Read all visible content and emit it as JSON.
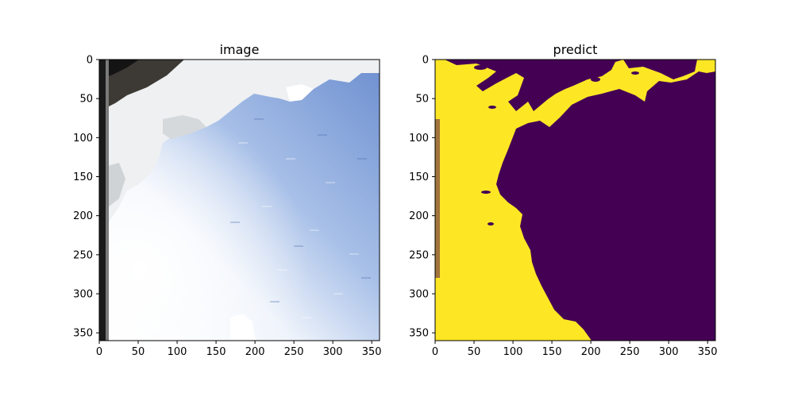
{
  "chart_data": [
    {
      "type": "image",
      "title": "image",
      "xlim": [
        0,
        360
      ],
      "ylim": [
        360,
        0
      ],
      "xticks": [
        0,
        50,
        100,
        150,
        200,
        250,
        300,
        350
      ],
      "yticks": [
        0,
        50,
        100,
        150,
        200,
        250,
        300,
        350
      ],
      "xtick_labels": [
        "0",
        "50",
        "100",
        "150",
        "200",
        "250",
        "300",
        "350"
      ],
      "ytick_labels": [
        "0",
        "50",
        "100",
        "150",
        "200",
        "250",
        "300",
        "350"
      ],
      "grid": false,
      "content": "camera photo: ice floes at top-left, bright sky glare, blue water on right"
    },
    {
      "type": "heatmap",
      "title": "predict",
      "xlim": [
        0,
        360
      ],
      "ylim": [
        360,
        0
      ],
      "xticks": [
        0,
        50,
        100,
        150,
        200,
        250,
        300,
        350
      ],
      "yticks": [
        0,
        50,
        100,
        150,
        200,
        250,
        300,
        350
      ],
      "xtick_labels": [
        "0",
        "50",
        "100",
        "150",
        "200",
        "250",
        "300",
        "350"
      ],
      "ytick_labels": [
        "0",
        "50",
        "100",
        "150",
        "200",
        "250",
        "300",
        "350"
      ],
      "grid": false,
      "classes": [
        {
          "value": 1,
          "color": "#fde725"
        },
        {
          "value": 0,
          "color": "#440154"
        }
      ],
      "edge_color": "#21918c"
    }
  ]
}
